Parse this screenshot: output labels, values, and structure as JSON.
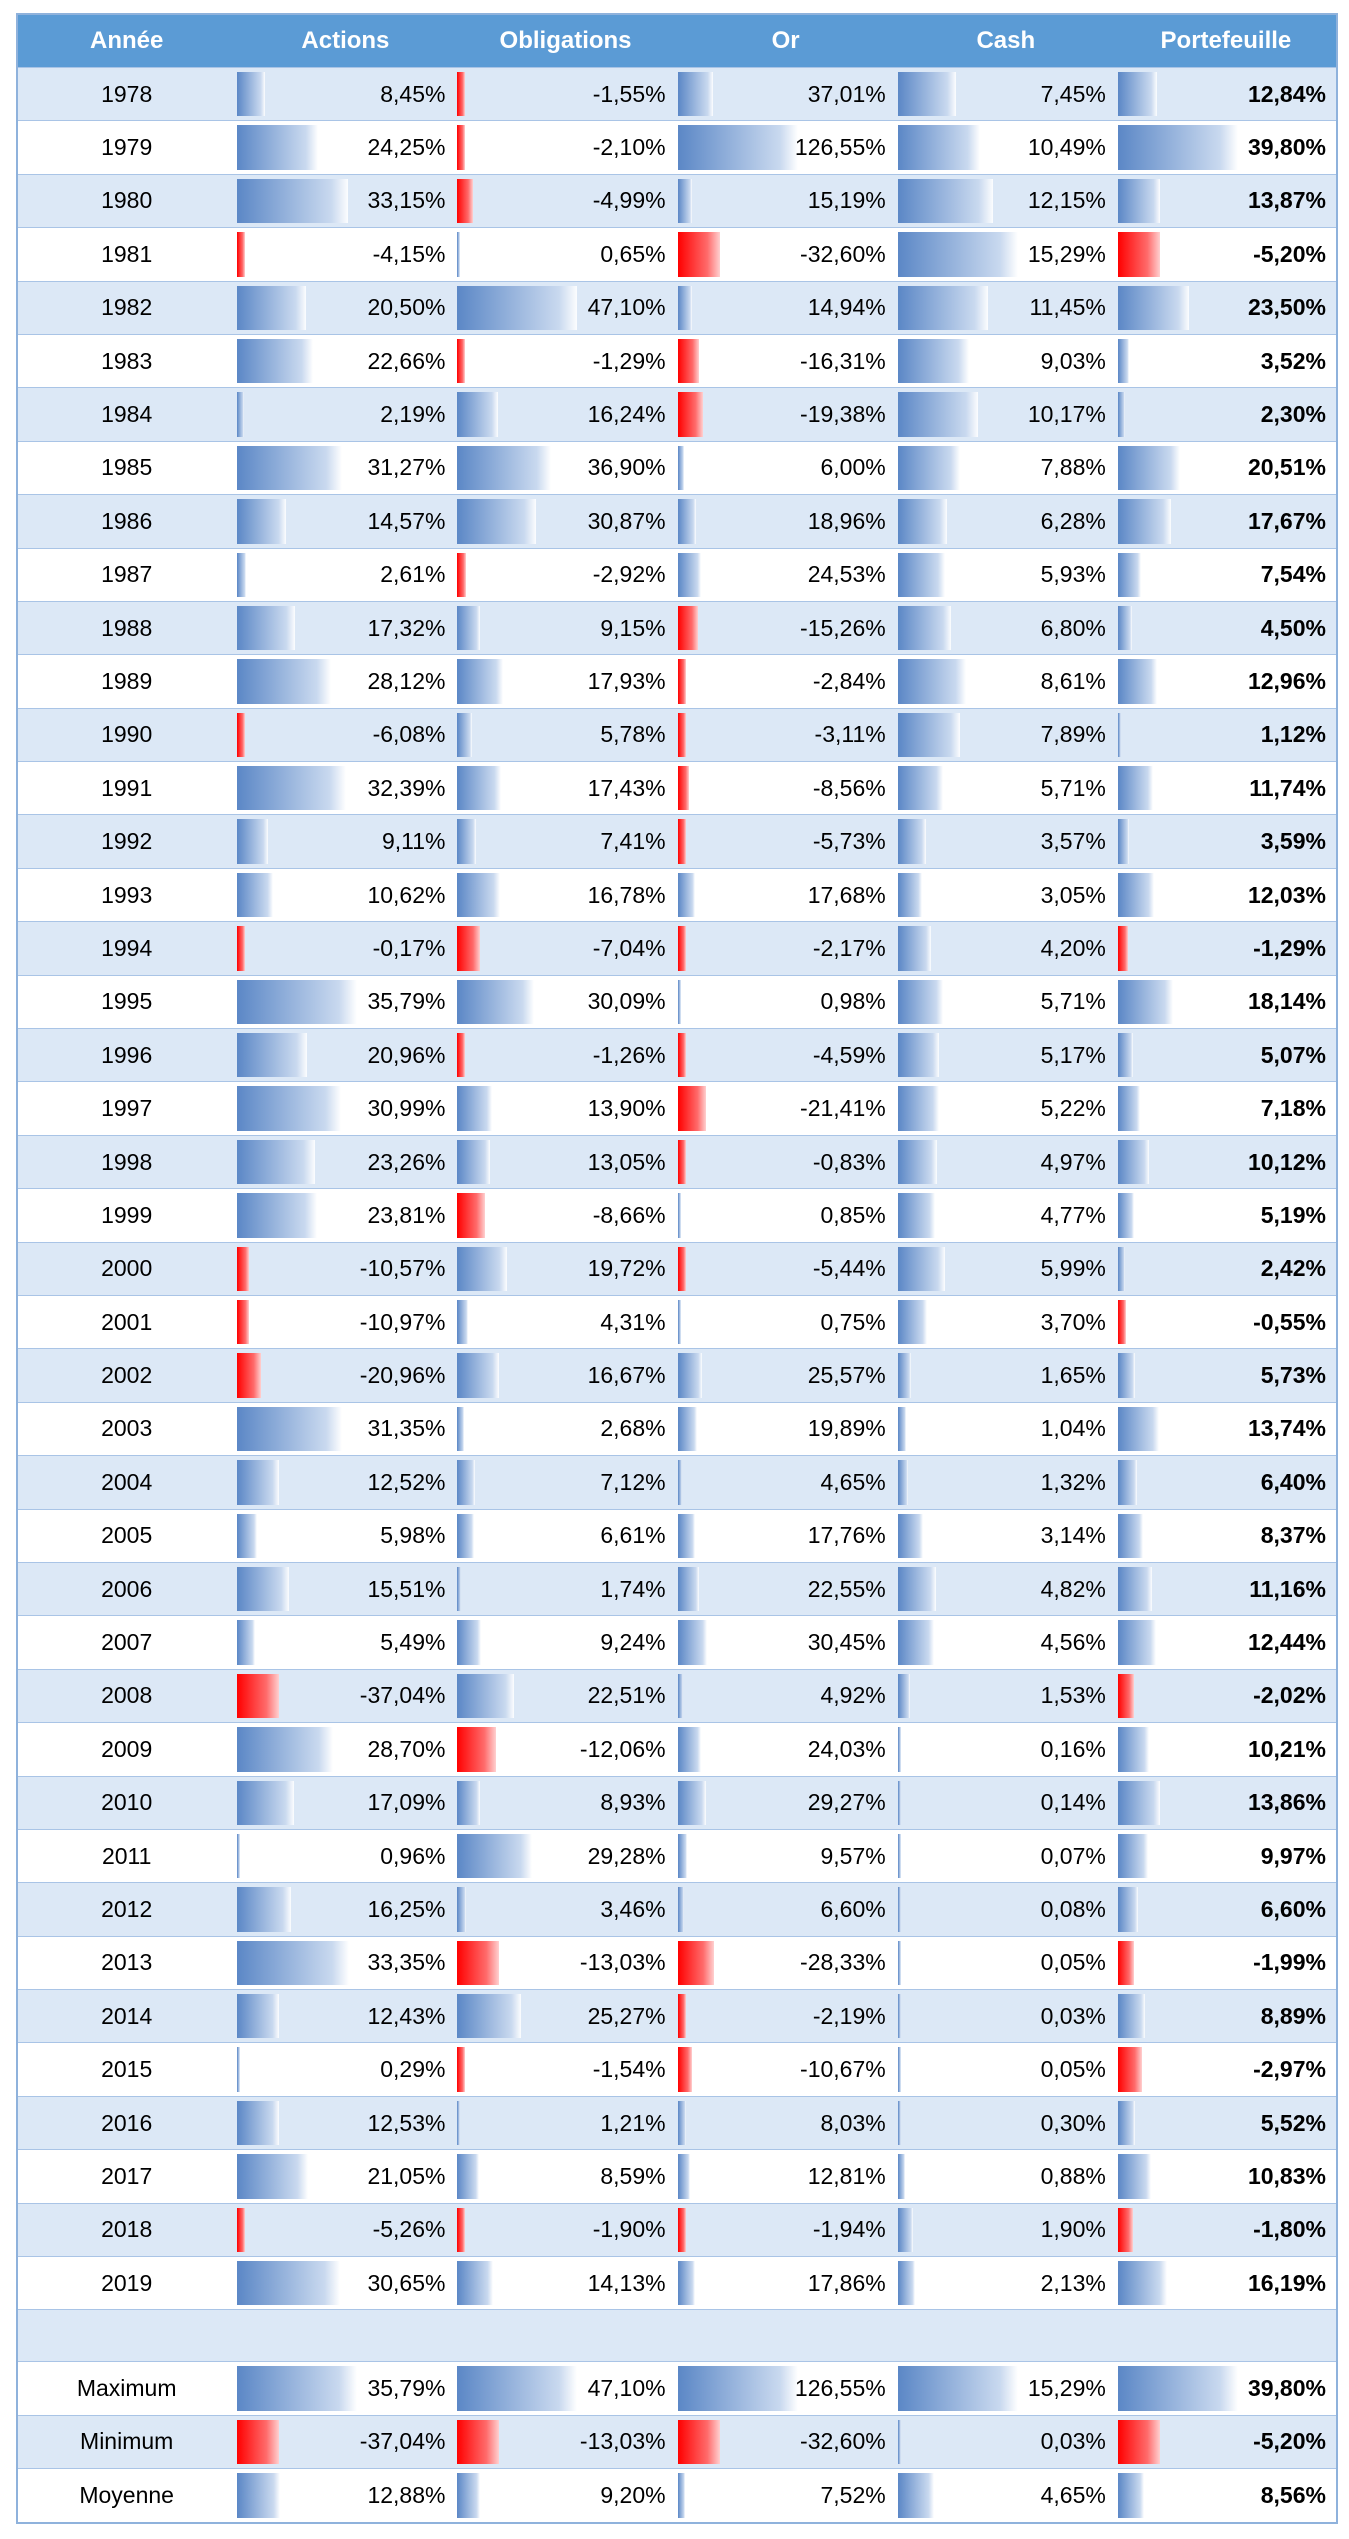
{
  "colors": {
    "header_bg": "#5b9bd5",
    "row_alt_bg": "#dce8f6",
    "positive_bar": "#5b87c6",
    "negative_bar": "#ff0000"
  },
  "headers": [
    "Année",
    "Actions",
    "Obligations",
    "Or",
    "Cash",
    "Portefeuille"
  ],
  "scales": {
    "max_pos": [
      35.79,
      47.1,
      126.55,
      15.29,
      39.8
    ],
    "max_neg": [
      37.04,
      13.03,
      32.6,
      0.01,
      5.2
    ]
  },
  "rows": [
    {
      "label": "1978",
      "v": [
        "8,45%",
        "-1,55%",
        "37,01%",
        "7,45%",
        "12,84%"
      ],
      "n": [
        8.45,
        -1.55,
        37.01,
        7.45,
        12.84
      ]
    },
    {
      "label": "1979",
      "v": [
        "24,25%",
        "-2,10%",
        "126,55%",
        "10,49%",
        "39,80%"
      ],
      "n": [
        24.25,
        -2.1,
        126.55,
        10.49,
        39.8
      ]
    },
    {
      "label": "1980",
      "v": [
        "33,15%",
        "-4,99%",
        "15,19%",
        "12,15%",
        "13,87%"
      ],
      "n": [
        33.15,
        -4.99,
        15.19,
        12.15,
        13.87
      ]
    },
    {
      "label": "1981",
      "v": [
        "-4,15%",
        "0,65%",
        "-32,60%",
        "15,29%",
        "-5,20%"
      ],
      "n": [
        -4.15,
        0.65,
        -32.6,
        15.29,
        -5.2
      ]
    },
    {
      "label": "1982",
      "v": [
        "20,50%",
        "47,10%",
        "14,94%",
        "11,45%",
        "23,50%"
      ],
      "n": [
        20.5,
        47.1,
        14.94,
        11.45,
        23.5
      ]
    },
    {
      "label": "1983",
      "v": [
        "22,66%",
        "-1,29%",
        "-16,31%",
        "9,03%",
        "3,52%"
      ],
      "n": [
        22.66,
        -1.29,
        -16.31,
        9.03,
        3.52
      ]
    },
    {
      "label": "1984",
      "v": [
        "2,19%",
        "16,24%",
        "-19,38%",
        "10,17%",
        "2,30%"
      ],
      "n": [
        2.19,
        16.24,
        -19.38,
        10.17,
        2.3
      ]
    },
    {
      "label": "1985",
      "v": [
        "31,27%",
        "36,90%",
        "6,00%",
        "7,88%",
        "20,51%"
      ],
      "n": [
        31.27,
        36.9,
        6.0,
        7.88,
        20.51
      ]
    },
    {
      "label": "1986",
      "v": [
        "14,57%",
        "30,87%",
        "18,96%",
        "6,28%",
        "17,67%"
      ],
      "n": [
        14.57,
        30.87,
        18.96,
        6.28,
        17.67
      ]
    },
    {
      "label": "1987",
      "v": [
        "2,61%",
        "-2,92%",
        "24,53%",
        "5,93%",
        "7,54%"
      ],
      "n": [
        2.61,
        -2.92,
        24.53,
        5.93,
        7.54
      ]
    },
    {
      "label": "1988",
      "v": [
        "17,32%",
        "9,15%",
        "-15,26%",
        "6,80%",
        "4,50%"
      ],
      "n": [
        17.32,
        9.15,
        -15.26,
        6.8,
        4.5
      ]
    },
    {
      "label": "1989",
      "v": [
        "28,12%",
        "17,93%",
        "-2,84%",
        "8,61%",
        "12,96%"
      ],
      "n": [
        28.12,
        17.93,
        -2.84,
        8.61,
        12.96
      ]
    },
    {
      "label": "1990",
      "v": [
        "-6,08%",
        "5,78%",
        "-3,11%",
        "7,89%",
        "1,12%"
      ],
      "n": [
        -6.08,
        5.78,
        -3.11,
        7.89,
        1.12
      ]
    },
    {
      "label": "1991",
      "v": [
        "32,39%",
        "17,43%",
        "-8,56%",
        "5,71%",
        "11,74%"
      ],
      "n": [
        32.39,
        17.43,
        -8.56,
        5.71,
        11.74
      ]
    },
    {
      "label": "1992",
      "v": [
        "9,11%",
        "7,41%",
        "-5,73%",
        "3,57%",
        "3,59%"
      ],
      "n": [
        9.11,
        7.41,
        -5.73,
        3.57,
        3.59
      ]
    },
    {
      "label": "1993",
      "v": [
        "10,62%",
        "16,78%",
        "17,68%",
        "3,05%",
        "12,03%"
      ],
      "n": [
        10.62,
        16.78,
        17.68,
        3.05,
        12.03
      ]
    },
    {
      "label": "1994",
      "v": [
        "-0,17%",
        "-7,04%",
        "-2,17%",
        "4,20%",
        "-1,29%"
      ],
      "n": [
        -0.17,
        -7.04,
        -2.17,
        4.2,
        -1.29
      ]
    },
    {
      "label": "1995",
      "v": [
        "35,79%",
        "30,09%",
        "0,98%",
        "5,71%",
        "18,14%"
      ],
      "n": [
        35.79,
        30.09,
        0.98,
        5.71,
        18.14
      ]
    },
    {
      "label": "1996",
      "v": [
        "20,96%",
        "-1,26%",
        "-4,59%",
        "5,17%",
        "5,07%"
      ],
      "n": [
        20.96,
        -1.26,
        -4.59,
        5.17,
        5.07
      ]
    },
    {
      "label": "1997",
      "v": [
        "30,99%",
        "13,90%",
        "-21,41%",
        "5,22%",
        "7,18%"
      ],
      "n": [
        30.99,
        13.9,
        -21.41,
        5.22,
        7.18
      ]
    },
    {
      "label": "1998",
      "v": [
        "23,26%",
        "13,05%",
        "-0,83%",
        "4,97%",
        "10,12%"
      ],
      "n": [
        23.26,
        13.05,
        -0.83,
        4.97,
        10.12
      ]
    },
    {
      "label": "1999",
      "v": [
        "23,81%",
        "-8,66%",
        "0,85%",
        "4,77%",
        "5,19%"
      ],
      "n": [
        23.81,
        -8.66,
        0.85,
        4.77,
        5.19
      ]
    },
    {
      "label": "2000",
      "v": [
        "-10,57%",
        "19,72%",
        "-5,44%",
        "5,99%",
        "2,42%"
      ],
      "n": [
        -10.57,
        19.72,
        -5.44,
        5.99,
        2.42
      ]
    },
    {
      "label": "2001",
      "v": [
        "-10,97%",
        "4,31%",
        "0,75%",
        "3,70%",
        "-0,55%"
      ],
      "n": [
        -10.97,
        4.31,
        0.75,
        3.7,
        -0.55
      ]
    },
    {
      "label": "2002",
      "v": [
        "-20,96%",
        "16,67%",
        "25,57%",
        "1,65%",
        "5,73%"
      ],
      "n": [
        -20.96,
        16.67,
        25.57,
        1.65,
        5.73
      ]
    },
    {
      "label": "2003",
      "v": [
        "31,35%",
        "2,68%",
        "19,89%",
        "1,04%",
        "13,74%"
      ],
      "n": [
        31.35,
        2.68,
        19.89,
        1.04,
        13.74
      ]
    },
    {
      "label": "2004",
      "v": [
        "12,52%",
        "7,12%",
        "4,65%",
        "1,32%",
        "6,40%"
      ],
      "n": [
        12.52,
        7.12,
        4.65,
        1.32,
        6.4
      ]
    },
    {
      "label": "2005",
      "v": [
        "5,98%",
        "6,61%",
        "17,76%",
        "3,14%",
        "8,37%"
      ],
      "n": [
        5.98,
        6.61,
        17.76,
        3.14,
        8.37
      ]
    },
    {
      "label": "2006",
      "v": [
        "15,51%",
        "1,74%",
        "22,55%",
        "4,82%",
        "11,16%"
      ],
      "n": [
        15.51,
        1.74,
        22.55,
        4.82,
        11.16
      ]
    },
    {
      "label": "2007",
      "v": [
        "5,49%",
        "9,24%",
        "30,45%",
        "4,56%",
        "12,44%"
      ],
      "n": [
        5.49,
        9.24,
        30.45,
        4.56,
        12.44
      ]
    },
    {
      "label": "2008",
      "v": [
        "-37,04%",
        "22,51%",
        "4,92%",
        "1,53%",
        "-2,02%"
      ],
      "n": [
        -37.04,
        22.51,
        4.92,
        1.53,
        -2.02
      ]
    },
    {
      "label": "2009",
      "v": [
        "28,70%",
        "-12,06%",
        "24,03%",
        "0,16%",
        "10,21%"
      ],
      "n": [
        28.7,
        -12.06,
        24.03,
        0.16,
        10.21
      ]
    },
    {
      "label": "2010",
      "v": [
        "17,09%",
        "8,93%",
        "29,27%",
        "0,14%",
        "13,86%"
      ],
      "n": [
        17.09,
        8.93,
        29.27,
        0.14,
        13.86
      ]
    },
    {
      "label": "2011",
      "v": [
        "0,96%",
        "29,28%",
        "9,57%",
        "0,07%",
        "9,97%"
      ],
      "n": [
        0.96,
        29.28,
        9.57,
        0.07,
        9.97
      ]
    },
    {
      "label": "2012",
      "v": [
        "16,25%",
        "3,46%",
        "6,60%",
        "0,08%",
        "6,60%"
      ],
      "n": [
        16.25,
        3.46,
        6.6,
        0.08,
        6.6
      ]
    },
    {
      "label": "2013",
      "v": [
        "33,35%",
        "-13,03%",
        "-28,33%",
        "0,05%",
        "-1,99%"
      ],
      "n": [
        33.35,
        -13.03,
        -28.33,
        0.05,
        -1.99
      ]
    },
    {
      "label": "2014",
      "v": [
        "12,43%",
        "25,27%",
        "-2,19%",
        "0,03%",
        "8,89%"
      ],
      "n": [
        12.43,
        25.27,
        -2.19,
        0.03,
        8.89
      ]
    },
    {
      "label": "2015",
      "v": [
        "0,29%",
        "-1,54%",
        "-10,67%",
        "0,05%",
        "-2,97%"
      ],
      "n": [
        0.29,
        -1.54,
        -10.67,
        0.05,
        -2.97
      ]
    },
    {
      "label": "2016",
      "v": [
        "12,53%",
        "1,21%",
        "8,03%",
        "0,30%",
        "5,52%"
      ],
      "n": [
        12.53,
        1.21,
        8.03,
        0.3,
        5.52
      ]
    },
    {
      "label": "2017",
      "v": [
        "21,05%",
        "8,59%",
        "12,81%",
        "0,88%",
        "10,83%"
      ],
      "n": [
        21.05,
        8.59,
        12.81,
        0.88,
        10.83
      ]
    },
    {
      "label": "2018",
      "v": [
        "-5,26%",
        "-1,90%",
        "-1,94%",
        "1,90%",
        "-1,80%"
      ],
      "n": [
        -5.26,
        -1.9,
        -1.94,
        1.9,
        -1.8
      ]
    },
    {
      "label": "2019",
      "v": [
        "30,65%",
        "14,13%",
        "17,86%",
        "2,13%",
        "16,19%"
      ],
      "n": [
        30.65,
        14.13,
        17.86,
        2.13,
        16.19
      ]
    }
  ],
  "summary": [
    {
      "label": "Maximum",
      "v": [
        "35,79%",
        "47,10%",
        "126,55%",
        "15,29%",
        "39,80%"
      ],
      "n": [
        35.79,
        47.1,
        126.55,
        15.29,
        39.8
      ]
    },
    {
      "label": "Minimum",
      "v": [
        "-37,04%",
        "-13,03%",
        "-32,60%",
        "0,03%",
        "-5,20%"
      ],
      "n": [
        -37.04,
        -13.03,
        -32.6,
        0.03,
        -5.2
      ]
    },
    {
      "label": "Moyenne",
      "v": [
        "12,88%",
        "9,20%",
        "7,52%",
        "4,65%",
        "8,56%"
      ],
      "n": [
        12.88,
        9.2,
        7.52,
        4.65,
        8.56
      ]
    }
  ]
}
